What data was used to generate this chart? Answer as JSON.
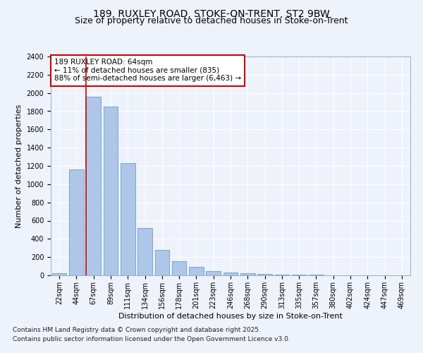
{
  "title1": "189, RUXLEY ROAD, STOKE-ON-TRENT, ST2 9BW",
  "title2": "Size of property relative to detached houses in Stoke-on-Trent",
  "xlabel": "Distribution of detached houses by size in Stoke-on-Trent",
  "ylabel": "Number of detached properties",
  "categories": [
    "22sqm",
    "44sqm",
    "67sqm",
    "89sqm",
    "111sqm",
    "134sqm",
    "156sqm",
    "178sqm",
    "201sqm",
    "223sqm",
    "246sqm",
    "268sqm",
    "290sqm",
    "313sqm",
    "335sqm",
    "357sqm",
    "380sqm",
    "402sqm",
    "424sqm",
    "447sqm",
    "469sqm"
  ],
  "values": [
    25,
    1160,
    1960,
    1850,
    1230,
    515,
    275,
    155,
    90,
    45,
    30,
    25,
    15,
    8,
    5,
    4,
    3,
    2,
    2,
    1,
    1
  ],
  "bar_color": "#aec6e8",
  "bar_edge_color": "#5a8fc0",
  "vline_color": "#cc0000",
  "vline_x_idx": 2,
  "annotation_text": "189 RUXLEY ROAD: 64sqm\n← 11% of detached houses are smaller (835)\n88% of semi-detached houses are larger (6,463) →",
  "annotation_box_color": "#cc0000",
  "ylim": [
    0,
    2400
  ],
  "yticks": [
    0,
    200,
    400,
    600,
    800,
    1000,
    1200,
    1400,
    1600,
    1800,
    2000,
    2200,
    2400
  ],
  "footer1": "Contains HM Land Registry data © Crown copyright and database right 2025.",
  "footer2": "Contains public sector information licensed under the Open Government Licence v3.0.",
  "bg_color": "#eef2fb",
  "plot_bg_color": "#eef2fb",
  "grid_color": "#ffffff",
  "title_fontsize": 10,
  "subtitle_fontsize": 9,
  "label_fontsize": 8,
  "tick_fontsize": 7,
  "annotation_fontsize": 7.5,
  "footer_fontsize": 6.5
}
